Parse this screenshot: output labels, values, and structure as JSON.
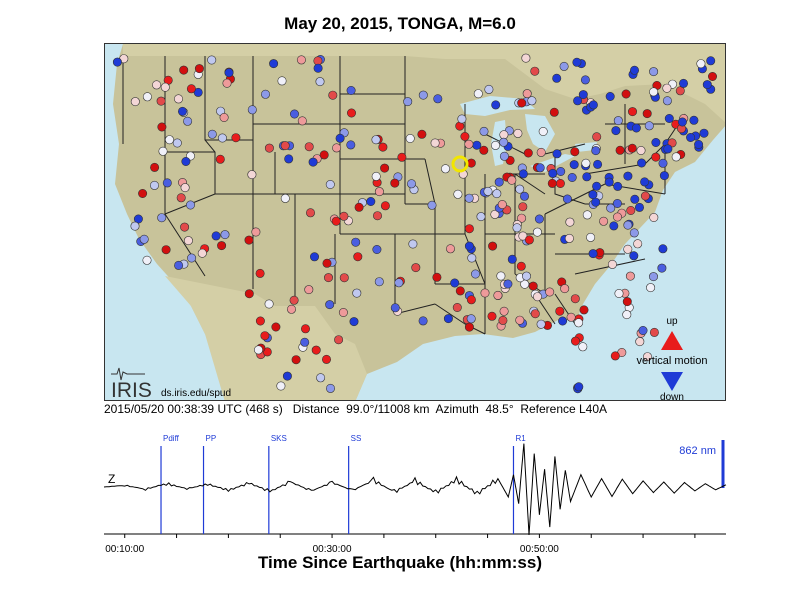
{
  "title": "May 20, 2015, TONGA, M=6.0",
  "map": {
    "logo": "IRIS",
    "url": "ds.iris.edu/spud",
    "legend": {
      "up": "up",
      "vertical_motion": "vertical motion",
      "down": "down"
    },
    "colors": {
      "land": "#c8c39a",
      "water": "#c8e6f0",
      "up": "#e81c1c",
      "down": "#1f3bd6",
      "marker": "#f2e600"
    }
  },
  "info": {
    "datetime": "2015/05/20 00:38:39 UTC (468 s)",
    "distance": "Distance  99.0°/11008 km",
    "azimuth": "Azimuth  48.5°",
    "reference": "Reference L40A"
  },
  "seismogram": {
    "component": "Z",
    "amplitude_label": "862 nm",
    "xlabel": "Time Since Earthquake (hh:mm:ss)",
    "ticks": [
      "00:10:00",
      "00:30:00",
      "00:50:00"
    ],
    "tick_minutes": [
      10,
      30,
      50
    ],
    "xlim_minutes": [
      8,
      68
    ],
    "phases": [
      {
        "name": "Pdiff",
        "minute": 13.5
      },
      {
        "name": "PP",
        "minute": 17.6
      },
      {
        "name": "SKS",
        "minute": 23.9
      },
      {
        "name": "SS",
        "minute": 31.6
      },
      {
        "name": "R1",
        "minute": 47.5
      }
    ]
  },
  "chart_data": {
    "type": "line",
    "title": "May 20, 2015, TONGA, M=6.0",
    "xlabel": "Time Since Earthquake (hh:mm:ss)",
    "ylabel": "Z",
    "units": "nm",
    "xlim": [
      "00:08:00",
      "01:08:00"
    ],
    "series": [
      {
        "name": "Z",
        "x_minutes": [
          8,
          10,
          12,
          14,
          16,
          18,
          20,
          22,
          24,
          26,
          28,
          30,
          32,
          34,
          36,
          38,
          40,
          42,
          44,
          46,
          47,
          47.5,
          48,
          48.5,
          49,
          49.5,
          50,
          50.5,
          51,
          51.5,
          52,
          52.5,
          53,
          54,
          55,
          56,
          57,
          58,
          59,
          60,
          61,
          62,
          63,
          64,
          65,
          66,
          67,
          68
        ],
        "values": [
          0,
          30,
          -40,
          60,
          -30,
          50,
          -60,
          70,
          -80,
          90,
          -70,
          80,
          -60,
          120,
          -90,
          110,
          -100,
          130,
          -120,
          150,
          -180,
          220,
          -300,
          780,
          -862,
          600,
          -500,
          320,
          -720,
          550,
          -400,
          300,
          -260,
          220,
          -180,
          150,
          -170,
          140,
          -120,
          110,
          -100,
          90,
          -110,
          80,
          -70,
          60,
          -50,
          40
        ]
      }
    ]
  }
}
